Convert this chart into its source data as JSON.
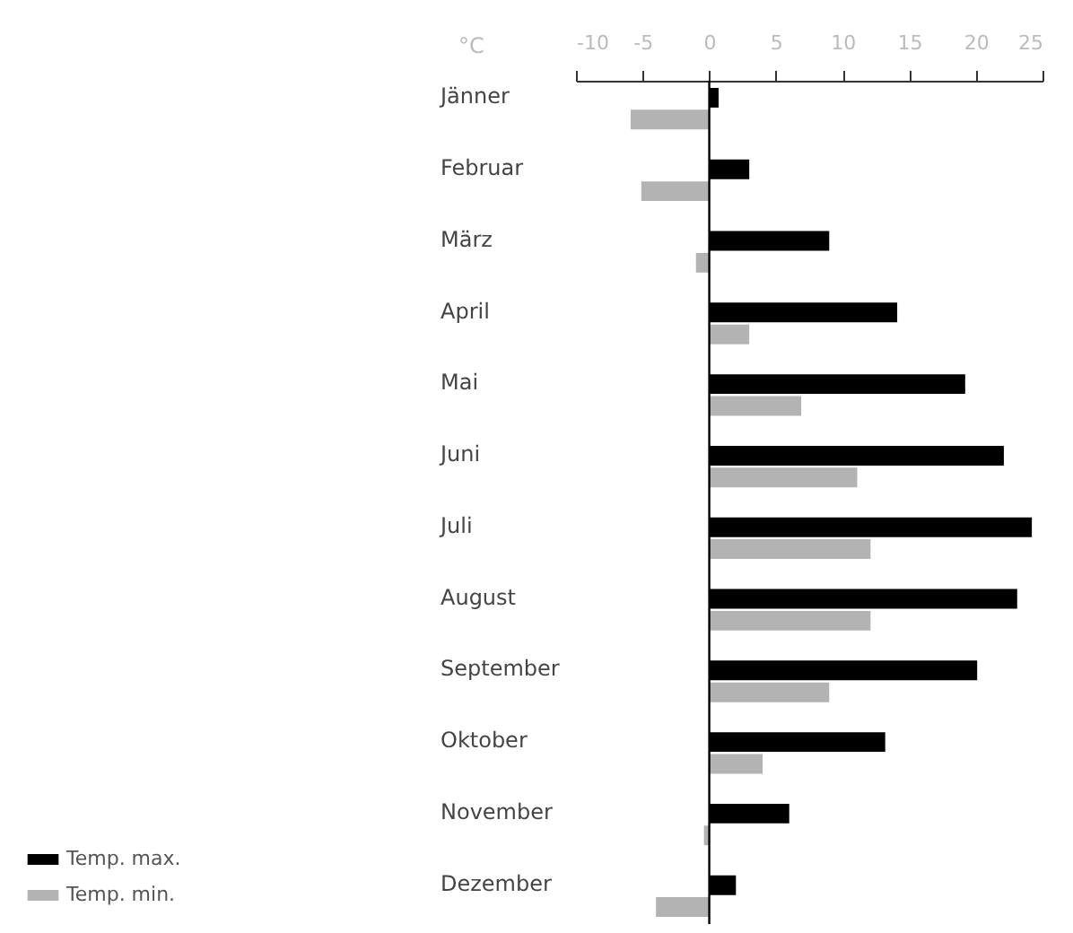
{
  "chart_data": {
    "type": "bar",
    "orientation": "horizontal",
    "xlabel": "°C",
    "categories": [
      "Jänner",
      "Februar",
      "März",
      "April",
      "Mai",
      "Juni",
      "Juli",
      "August",
      "September",
      "Oktober",
      "November",
      "Dezember"
    ],
    "series": [
      {
        "name": "Temp. max.",
        "color": "#000000",
        "values": [
          0.7,
          3.0,
          9.0,
          14.1,
          19.2,
          22.1,
          24.2,
          23.1,
          20.1,
          13.2,
          6.0,
          2.0
        ]
      },
      {
        "name": "Temp. min.",
        "color": "#b3b3b3",
        "values": [
          -5.9,
          -5.1,
          -1.0,
          3.0,
          6.9,
          11.1,
          12.1,
          12.1,
          9.0,
          4.0,
          -0.4,
          -4.0
        ]
      }
    ],
    "xlim": [
      -10,
      25
    ],
    "xticks": [
      -10,
      -5,
      0,
      5,
      10,
      15,
      20,
      25
    ],
    "ref_lines": [
      {
        "axis": "x",
        "value": 0,
        "color": "#000000"
      }
    ],
    "grid": false,
    "legend": "bottom left"
  }
}
